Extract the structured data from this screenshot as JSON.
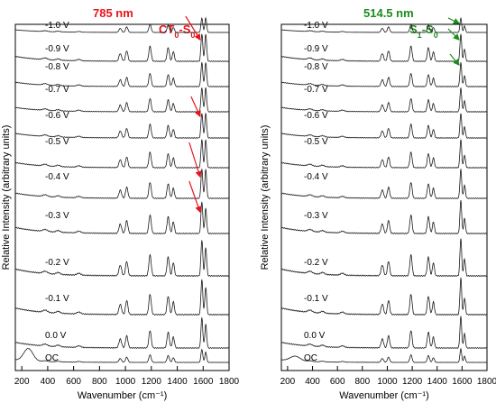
{
  "chart_data": [
    {
      "type": "line",
      "title": "785 nm",
      "title_color": "#e8141c",
      "annotation": {
        "text": "CT0-S0",
        "base": "CT",
        "sub1": "0",
        "dash": "-S",
        "sub2": "0",
        "color": "#e8141c"
      },
      "xlabel": "Wavenumber (cm⁻¹)",
      "ylabel": "Relative Intensity (arbitrary units)",
      "xlim": [
        150,
        1800
      ],
      "xticks": [
        "200",
        "400",
        "600",
        "800",
        "1000",
        "1200",
        "1400",
        "1600",
        "1800"
      ],
      "grid": false,
      "series": [
        {
          "name": "-1.0 V"
        },
        {
          "name": "-0.9 V"
        },
        {
          "name": "-0.8 V"
        },
        {
          "name": "-0.7 V"
        },
        {
          "name": "-0.6 V"
        },
        {
          "name": "-0.5 V"
        },
        {
          "name": "-0.4 V"
        },
        {
          "name": "-0.3 V"
        },
        {
          "name": "-0.2 V"
        },
        {
          "name": "-0.1 V"
        },
        {
          "name": "0.0 V"
        },
        {
          "name": "OC"
        }
      ],
      "peaks_cm1": [
        380,
        480,
        640,
        960,
        1010,
        1190,
        1330,
        1370,
        1590,
        1620
      ],
      "marked_peak_cm1": 1590
    },
    {
      "type": "line",
      "title": "514.5 nm",
      "title_color": "#1a8c1a",
      "annotation": {
        "text": "S1-S0",
        "base": "S",
        "sub1": "1",
        "dash": "-S",
        "sub2": "0",
        "color": "#1a8c1a"
      },
      "xlabel": "Wavenumber (cm⁻¹)",
      "ylabel": "Relative Intensity (arbitrary units)",
      "xlim": [
        150,
        1800
      ],
      "xticks": [
        "200",
        "400",
        "600",
        "800",
        "1000",
        "1200",
        "1400",
        "1600",
        "1800"
      ],
      "grid": false,
      "series": [
        {
          "name": "-1.0 V"
        },
        {
          "name": "-0.9 V"
        },
        {
          "name": "-0.8 V"
        },
        {
          "name": "-0.7 V"
        },
        {
          "name": "-0.6 V"
        },
        {
          "name": "-0.5 V"
        },
        {
          "name": "-0.4 V"
        },
        {
          "name": "-0.3 V"
        },
        {
          "name": "-0.2 V"
        },
        {
          "name": "-0.1 V"
        },
        {
          "name": "0.0 V"
        },
        {
          "name": "OC"
        }
      ],
      "peaks_cm1": [
        380,
        480,
        640,
        960,
        1010,
        1190,
        1330,
        1370,
        1590,
        1620
      ],
      "marked_peak_cm1": 1590
    }
  ]
}
